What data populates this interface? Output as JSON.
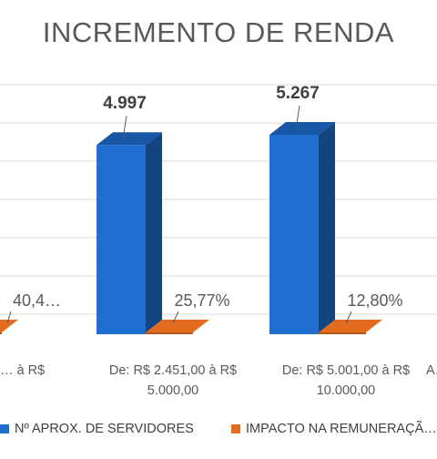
{
  "chart_data": {
    "type": "bar",
    "title": "INCREMENTO DE RENDA",
    "categories": [
      "… à R$",
      "De: R$ 2.451,00 à R$ 5.000,00",
      "De: R$ 5.001,00 à R$ 10.000,00",
      "A…"
    ],
    "series": [
      {
        "name": "Nº APROX. DE SERVIDORES",
        "values": [
          null,
          4997,
          5267,
          null
        ],
        "labels": [
          "",
          "4.997",
          "5.267",
          ""
        ],
        "color": "#1F6FD1"
      },
      {
        "name": "IMPACTO NA REMUNERAÇÃ…",
        "values": [
          null,
          25.77,
          12.8,
          null
        ],
        "labels": [
          "40,4…",
          "25,77%",
          "12,80%",
          ""
        ],
        "color": "#E36C1E"
      }
    ],
    "y_axis_visible": false,
    "grid": true,
    "legend_position": "bottom",
    "style": "3d-clustered-column"
  }
}
